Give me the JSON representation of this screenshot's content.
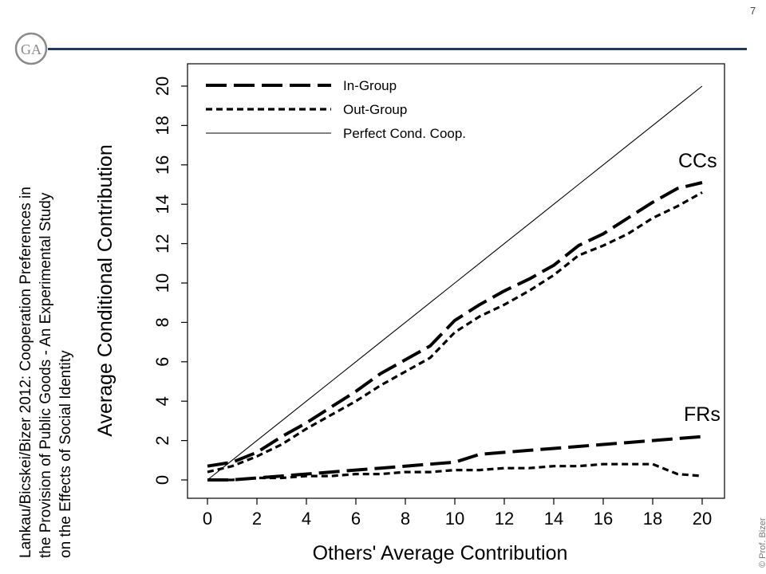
{
  "page_number": "7",
  "citation_lines": [
    "Lankau/Bicskei/Bizer 2012:  Cooperation Preferences in",
    "the Provision of Public Goods - An Experimental Study",
    "on the Effects of Social Identity"
  ],
  "copyright": "© Prof. Bizer",
  "colors": {
    "header_rule": "#1f3864",
    "lines": "#000000"
  },
  "chart_data": {
    "type": "line",
    "xlabel": "Others' Average Contribution",
    "ylabel": "Average Conditional Contribution",
    "xlim": [
      0,
      20
    ],
    "ylim": [
      0,
      20
    ],
    "x_ticks": [
      0,
      2,
      4,
      6,
      8,
      10,
      12,
      14,
      16,
      18,
      20
    ],
    "y_ticks": [
      0,
      2,
      4,
      6,
      8,
      10,
      12,
      14,
      16,
      18,
      20
    ],
    "legend": [
      "In-Group",
      "Out-Group",
      "Perfect Cond. Coop."
    ],
    "legend_position": "top-left",
    "annotations": [
      "CCs",
      "FRs"
    ],
    "grid": false,
    "x": [
      0,
      1,
      2,
      3,
      4,
      5,
      6,
      7,
      8,
      9,
      10,
      11,
      12,
      13,
      14,
      15,
      16,
      17,
      18,
      19,
      20
    ],
    "series": [
      {
        "name": "Perfect Cond. Coop.",
        "style": "solid",
        "values": [
          0,
          1,
          2,
          3,
          4,
          5,
          6,
          7,
          8,
          9,
          10,
          11,
          12,
          13,
          14,
          15,
          16,
          17,
          18,
          19,
          20
        ]
      },
      {
        "group": "CCs",
        "name": "In-Group",
        "style": "longdash",
        "values": [
          0.7,
          0.9,
          1.4,
          2.2,
          2.9,
          3.7,
          4.5,
          5.4,
          6.1,
          6.8,
          8.1,
          8.9,
          9.6,
          10.2,
          10.9,
          11.9,
          12.5,
          13.3,
          14.1,
          14.8,
          15.1
        ]
      },
      {
        "group": "CCs",
        "name": "Out-Group",
        "style": "shortdash",
        "values": [
          0.4,
          0.7,
          1.2,
          1.8,
          2.6,
          3.3,
          4.0,
          4.8,
          5.5,
          6.2,
          7.5,
          8.3,
          8.9,
          9.6,
          10.4,
          11.4,
          11.9,
          12.5,
          13.3,
          13.9,
          14.6
        ]
      },
      {
        "group": "FRs",
        "name": "In-Group",
        "style": "longdash",
        "values": [
          0.0,
          0.0,
          0.1,
          0.2,
          0.3,
          0.4,
          0.5,
          0.6,
          0.7,
          0.8,
          0.9,
          1.3,
          1.4,
          1.5,
          1.6,
          1.7,
          1.8,
          1.9,
          2.0,
          2.1,
          2.2
        ]
      },
      {
        "group": "FRs",
        "name": "Out-Group",
        "style": "shortdash",
        "values": [
          0.0,
          0.0,
          0.1,
          0.1,
          0.2,
          0.2,
          0.3,
          0.3,
          0.4,
          0.4,
          0.5,
          0.5,
          0.6,
          0.6,
          0.7,
          0.7,
          0.8,
          0.8,
          0.8,
          0.3,
          0.2
        ]
      }
    ]
  }
}
